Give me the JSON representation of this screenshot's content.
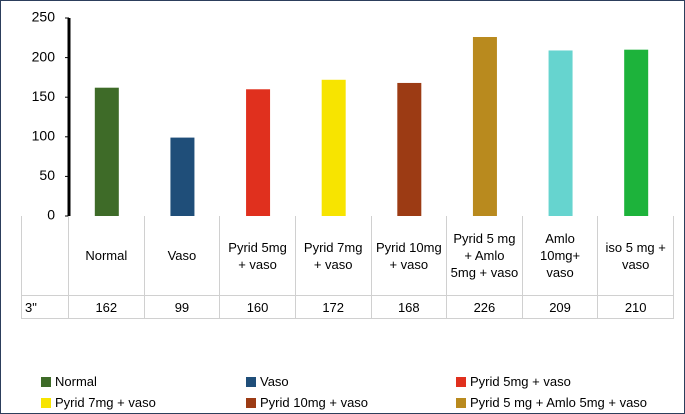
{
  "chart_data": {
    "type": "bar",
    "categories": [
      "Normal",
      "Vaso",
      "Pyrid 5mg + vaso",
      "Pyrid 7mg + vaso",
      "Pyrid 10mg + vaso",
      "Pyrid 5 mg + Amlo 5mg + vaso",
      "Amlo 10mg+ vaso",
      "iso 5 mg + vaso"
    ],
    "series": [
      {
        "name": "3\"",
        "values": [
          162,
          99,
          160,
          172,
          168,
          226,
          209,
          210
        ]
      }
    ],
    "colors": [
      "#3e6b28",
      "#1f4e79",
      "#e0301e",
      "#f7e400",
      "#9c3b14",
      "#b98a1e",
      "#66d4cf",
      "#1db33b"
    ],
    "ylim": [
      0,
      250
    ],
    "yticks": [
      0,
      50,
      100,
      150,
      200,
      250
    ],
    "legend_count": 6
  }
}
